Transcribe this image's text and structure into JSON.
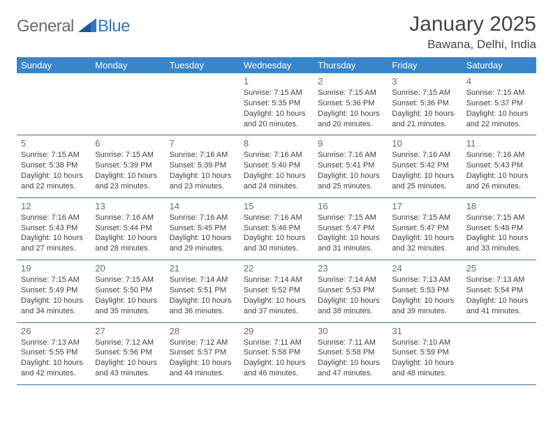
{
  "brand": {
    "general": "General",
    "blue": "Blue"
  },
  "title": "January 2025",
  "location": "Bawana, Delhi, India",
  "colors": {
    "header_bg": "#3a85c8",
    "header_text": "#ffffff",
    "border": "#3a6fa0",
    "day_num": "#6a6a6a",
    "body_text": "#3f3f3f",
    "logo_gray": "#6b6b6b",
    "logo_blue": "#2d78c0"
  },
  "weekdays": [
    "Sunday",
    "Monday",
    "Tuesday",
    "Wednesday",
    "Thursday",
    "Friday",
    "Saturday"
  ],
  "weeks": [
    [
      null,
      null,
      null,
      {
        "d": "1",
        "sr": "7:15 AM",
        "ss": "5:35 PM",
        "dl": "10 hours and 20 minutes."
      },
      {
        "d": "2",
        "sr": "7:15 AM",
        "ss": "5:36 PM",
        "dl": "10 hours and 20 minutes."
      },
      {
        "d": "3",
        "sr": "7:15 AM",
        "ss": "5:36 PM",
        "dl": "10 hours and 21 minutes."
      },
      {
        "d": "4",
        "sr": "7:15 AM",
        "ss": "5:37 PM",
        "dl": "10 hours and 22 minutes."
      }
    ],
    [
      {
        "d": "5",
        "sr": "7:15 AM",
        "ss": "5:38 PM",
        "dl": "10 hours and 22 minutes."
      },
      {
        "d": "6",
        "sr": "7:15 AM",
        "ss": "5:39 PM",
        "dl": "10 hours and 23 minutes."
      },
      {
        "d": "7",
        "sr": "7:16 AM",
        "ss": "5:39 PM",
        "dl": "10 hours and 23 minutes."
      },
      {
        "d": "8",
        "sr": "7:16 AM",
        "ss": "5:40 PM",
        "dl": "10 hours and 24 minutes."
      },
      {
        "d": "9",
        "sr": "7:16 AM",
        "ss": "5:41 PM",
        "dl": "10 hours and 25 minutes."
      },
      {
        "d": "10",
        "sr": "7:16 AM",
        "ss": "5:42 PM",
        "dl": "10 hours and 25 minutes."
      },
      {
        "d": "11",
        "sr": "7:16 AM",
        "ss": "5:43 PM",
        "dl": "10 hours and 26 minutes."
      }
    ],
    [
      {
        "d": "12",
        "sr": "7:16 AM",
        "ss": "5:43 PM",
        "dl": "10 hours and 27 minutes."
      },
      {
        "d": "13",
        "sr": "7:16 AM",
        "ss": "5:44 PM",
        "dl": "10 hours and 28 minutes."
      },
      {
        "d": "14",
        "sr": "7:16 AM",
        "ss": "5:45 PM",
        "dl": "10 hours and 29 minutes."
      },
      {
        "d": "15",
        "sr": "7:16 AM",
        "ss": "5:46 PM",
        "dl": "10 hours and 30 minutes."
      },
      {
        "d": "16",
        "sr": "7:15 AM",
        "ss": "5:47 PM",
        "dl": "10 hours and 31 minutes."
      },
      {
        "d": "17",
        "sr": "7:15 AM",
        "ss": "5:47 PM",
        "dl": "10 hours and 32 minutes."
      },
      {
        "d": "18",
        "sr": "7:15 AM",
        "ss": "5:48 PM",
        "dl": "10 hours and 33 minutes."
      }
    ],
    [
      {
        "d": "19",
        "sr": "7:15 AM",
        "ss": "5:49 PM",
        "dl": "10 hours and 34 minutes."
      },
      {
        "d": "20",
        "sr": "7:15 AM",
        "ss": "5:50 PM",
        "dl": "10 hours and 35 minutes."
      },
      {
        "d": "21",
        "sr": "7:14 AM",
        "ss": "5:51 PM",
        "dl": "10 hours and 36 minutes."
      },
      {
        "d": "22",
        "sr": "7:14 AM",
        "ss": "5:52 PM",
        "dl": "10 hours and 37 minutes."
      },
      {
        "d": "23",
        "sr": "7:14 AM",
        "ss": "5:53 PM",
        "dl": "10 hours and 38 minutes."
      },
      {
        "d": "24",
        "sr": "7:13 AM",
        "ss": "5:53 PM",
        "dl": "10 hours and 39 minutes."
      },
      {
        "d": "25",
        "sr": "7:13 AM",
        "ss": "5:54 PM",
        "dl": "10 hours and 41 minutes."
      }
    ],
    [
      {
        "d": "26",
        "sr": "7:13 AM",
        "ss": "5:55 PM",
        "dl": "10 hours and 42 minutes."
      },
      {
        "d": "27",
        "sr": "7:12 AM",
        "ss": "5:56 PM",
        "dl": "10 hours and 43 minutes."
      },
      {
        "d": "28",
        "sr": "7:12 AM",
        "ss": "5:57 PM",
        "dl": "10 hours and 44 minutes."
      },
      {
        "d": "29",
        "sr": "7:11 AM",
        "ss": "5:58 PM",
        "dl": "10 hours and 46 minutes."
      },
      {
        "d": "30",
        "sr": "7:11 AM",
        "ss": "5:58 PM",
        "dl": "10 hours and 47 minutes."
      },
      {
        "d": "31",
        "sr": "7:10 AM",
        "ss": "5:59 PM",
        "dl": "10 hours and 48 minutes."
      },
      null
    ]
  ],
  "labels": {
    "sunrise": "Sunrise:",
    "sunset": "Sunset:",
    "daylight": "Daylight:"
  }
}
